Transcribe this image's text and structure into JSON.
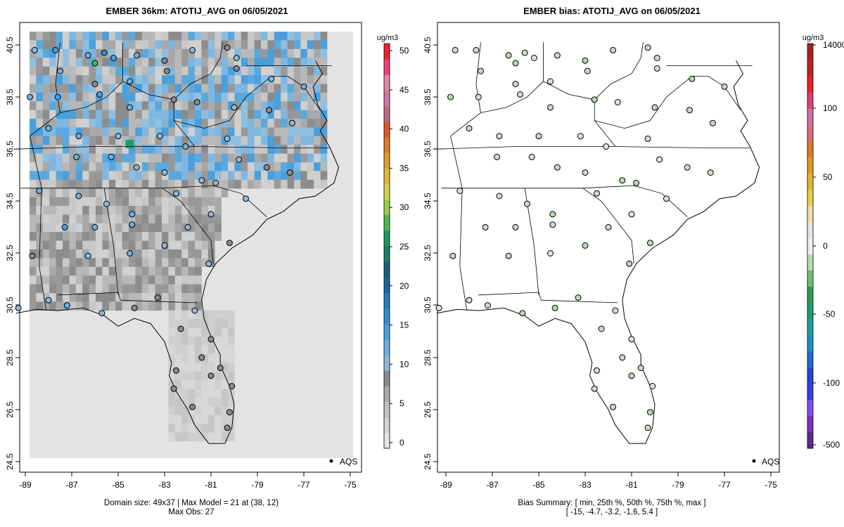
{
  "left_panel": {
    "title": "EMBER 36km: ATOTIJ_AVG on 06/05/2021",
    "footer_line1": "Domain size: 49x37 | Max Model = 21 at (38, 12)",
    "footer_line2": "Max Obs: 27",
    "legend_label": "AQS",
    "colorbar": {
      "unit": "ug/m3",
      "ticks": [
        "0",
        "5",
        "10",
        "15",
        "20",
        "25",
        "30",
        "35",
        "40",
        "45",
        "50"
      ],
      "colors": [
        "#e6e6e6",
        "#d4d4d4",
        "#c2c2c2",
        "#aaaaaa",
        "#8a8a8a",
        "#8fb8d8",
        "#6fb0e0",
        "#4aa0de",
        "#2f8fd0",
        "#1f7ec0",
        "#18689c",
        "#17607a",
        "#16806a",
        "#1a9a60",
        "#4ab84a",
        "#9ccc48",
        "#d4d448",
        "#e0b838",
        "#e09a2e",
        "#e07a26",
        "#dc5a2a",
        "#c26a8a",
        "#cc7aa0",
        "#e08aa8",
        "#f0407a",
        "#f22030"
      ]
    },
    "chart_data": {
      "type": "map",
      "x_axis_ticks": [
        "-89",
        "-87",
        "-85",
        "-83",
        "-81",
        "-79",
        "-77",
        "-75"
      ],
      "y_axis_ticks": [
        "24.5",
        "26.5",
        "28.5",
        "30.5",
        "32.5",
        "34.5",
        "36.5",
        "38.5",
        "40.5"
      ],
      "xlim": [
        -89.2,
        -74.8
      ],
      "ylim": [
        24.3,
        40.9
      ],
      "stations": [
        {
          "lon": -88.6,
          "lat": 40.3,
          "val": 9
        },
        {
          "lon": -87.7,
          "lat": 40.3,
          "val": 13
        },
        {
          "lon": -86.3,
          "lat": 40.1,
          "val": 12
        },
        {
          "lon": -85.6,
          "lat": 40.2,
          "val": 16
        },
        {
          "lon": -85.2,
          "lat": 40.0,
          "val": 14
        },
        {
          "lon": -84.2,
          "lat": 40.1,
          "val": 12
        },
        {
          "lon": -83.0,
          "lat": 39.9,
          "val": 8
        },
        {
          "lon": -81.8,
          "lat": 40.3,
          "val": 9
        },
        {
          "lon": -80.3,
          "lat": 40.4,
          "val": 8
        },
        {
          "lon": -79.9,
          "lat": 40.0,
          "val": 9
        },
        {
          "lon": -86.0,
          "lat": 39.8,
          "val": 27
        },
        {
          "lon": -87.5,
          "lat": 39.5,
          "val": 12
        },
        {
          "lon": -86.0,
          "lat": 39.0,
          "val": 8
        },
        {
          "lon": -84.5,
          "lat": 39.1,
          "val": 12
        },
        {
          "lon": -82.9,
          "lat": 39.5,
          "val": 8
        },
        {
          "lon": -79.9,
          "lat": 39.6,
          "val": 8
        },
        {
          "lon": -78.4,
          "lat": 39.2,
          "val": 9
        },
        {
          "lon": -77.0,
          "lat": 38.9,
          "val": 12
        },
        {
          "lon": -88.8,
          "lat": 38.5,
          "val": 11
        },
        {
          "lon": -87.6,
          "lat": 38.5,
          "val": 14
        },
        {
          "lon": -85.8,
          "lat": 38.6,
          "val": 13
        },
        {
          "lon": -84.5,
          "lat": 38.1,
          "val": 11
        },
        {
          "lon": -82.6,
          "lat": 38.4,
          "val": 7
        },
        {
          "lon": -81.6,
          "lat": 38.3,
          "val": 8
        },
        {
          "lon": -80.0,
          "lat": 38.1,
          "val": 9
        },
        {
          "lon": -78.5,
          "lat": 38.0,
          "val": 8
        },
        {
          "lon": -77.5,
          "lat": 37.5,
          "val": 9
        },
        {
          "lon": -88.0,
          "lat": 37.3,
          "val": 12
        },
        {
          "lon": -86.7,
          "lat": 37.0,
          "val": 11
        },
        {
          "lon": -85.0,
          "lat": 37.0,
          "val": 10
        },
        {
          "lon": -83.2,
          "lat": 37.0,
          "val": 9
        },
        {
          "lon": -82.1,
          "lat": 36.6,
          "val": 11
        },
        {
          "lon": -80.3,
          "lat": 36.9,
          "val": 9
        },
        {
          "lon": -79.8,
          "lat": 36.1,
          "val": 10
        },
        {
          "lon": -78.6,
          "lat": 35.8,
          "val": 8
        },
        {
          "lon": -77.6,
          "lat": 35.6,
          "val": 8
        },
        {
          "lon": -86.8,
          "lat": 36.2,
          "val": 12
        },
        {
          "lon": -85.3,
          "lat": 36.2,
          "val": 12
        },
        {
          "lon": -84.2,
          "lat": 35.8,
          "val": 10
        },
        {
          "lon": -83.0,
          "lat": 35.6,
          "val": 9
        },
        {
          "lon": -81.4,
          "lat": 35.3,
          "val": 9
        },
        {
          "lon": -80.8,
          "lat": 35.2,
          "val": 9
        },
        {
          "lon": -88.4,
          "lat": 34.9,
          "val": 12
        },
        {
          "lon": -86.7,
          "lat": 34.7,
          "val": 12
        },
        {
          "lon": -85.5,
          "lat": 34.4,
          "val": 10
        },
        {
          "lon": -84.4,
          "lat": 34.0,
          "val": 12
        },
        {
          "lon": -82.5,
          "lat": 34.8,
          "val": 9
        },
        {
          "lon": -81.0,
          "lat": 34.0,
          "val": 9
        },
        {
          "lon": -79.5,
          "lat": 34.6,
          "val": 9
        },
        {
          "lon": -87.3,
          "lat": 33.5,
          "val": 13
        },
        {
          "lon": -86.0,
          "lat": 33.5,
          "val": 11
        },
        {
          "lon": -84.4,
          "lat": 33.6,
          "val": 11
        },
        {
          "lon": -82.0,
          "lat": 33.5,
          "val": 10
        },
        {
          "lon": -80.2,
          "lat": 32.9,
          "val": 8
        },
        {
          "lon": -88.7,
          "lat": 32.4,
          "val": 8
        },
        {
          "lon": -86.3,
          "lat": 32.4,
          "val": 10
        },
        {
          "lon": -84.5,
          "lat": 32.5,
          "val": 11
        },
        {
          "lon": -83.0,
          "lat": 32.8,
          "val": 9
        },
        {
          "lon": -81.1,
          "lat": 32.1,
          "val": 9
        },
        {
          "lon": -88.0,
          "lat": 30.7,
          "val": 10
        },
        {
          "lon": -87.2,
          "lat": 30.5,
          "val": 11
        },
        {
          "lon": -85.7,
          "lat": 30.2,
          "val": 9
        },
        {
          "lon": -84.3,
          "lat": 30.4,
          "val": 8
        },
        {
          "lon": -83.3,
          "lat": 30.8,
          "val": 8
        },
        {
          "lon": -81.7,
          "lat": 30.3,
          "val": 9
        },
        {
          "lon": -82.3,
          "lat": 29.6,
          "val": 8
        },
        {
          "lon": -81.0,
          "lat": 29.2,
          "val": 8
        },
        {
          "lon": -82.5,
          "lat": 28.0,
          "val": 7
        },
        {
          "lon": -81.4,
          "lat": 28.5,
          "val": 8
        },
        {
          "lon": -80.6,
          "lat": 28.1,
          "val": 8
        },
        {
          "lon": -82.6,
          "lat": 27.3,
          "val": 7
        },
        {
          "lon": -81.8,
          "lat": 26.6,
          "val": 7
        },
        {
          "lon": -80.2,
          "lat": 26.4,
          "val": 7
        },
        {
          "lon": -80.3,
          "lat": 25.8,
          "val": 7
        },
        {
          "lon": -89.3,
          "lat": 30.4,
          "val": 9
        },
        {
          "lon": -80.1,
          "lat": 27.4,
          "val": 7
        },
        {
          "lon": -81.0,
          "lat": 27.8,
          "val": 8
        }
      ]
    }
  },
  "right_panel": {
    "title": "EMBER bias: ATOTIJ_AVG on 06/05/2021",
    "footer_line1": "Bias Summary: [ min, 25th %, 50th %, 75th %, max ]",
    "footer_line2": "[ -15,   -4.7,   -3.2,   -1.6,   5.4 ]",
    "legend_label": "AQS",
    "colorbar": {
      "unit": "ug/m3",
      "ticks": [
        "-500",
        "-100",
        "-50",
        "0",
        "50",
        "100",
        "14000"
      ],
      "colors": [
        "#5a2a8a",
        "#7a30c8",
        "#7a50f0",
        "#3a3aee",
        "#1a4ae0",
        "#1a6ad8",
        "#1a90c8",
        "#1aa0a0",
        "#1aa070",
        "#2ca050",
        "#6ac070",
        "#b4dcb0",
        "#f0f0f0",
        "#e6e6e6",
        "#f0e0a0",
        "#e8d040",
        "#e8b428",
        "#e89420",
        "#e07a24",
        "#e06a7a",
        "#d070a0",
        "#e04070",
        "#ee2020",
        "#c22020",
        "#a82424"
      ]
    },
    "chart_data": {
      "type": "map",
      "x_axis_ticks": [
        "-89",
        "-87",
        "-85",
        "-83",
        "-81",
        "-79",
        "-77",
        "-75"
      ],
      "y_axis_ticks": [
        "24.5",
        "26.5",
        "28.5",
        "30.5",
        "32.5",
        "34.5",
        "36.5",
        "38.5",
        "40.5"
      ],
      "xlim": [
        -89.2,
        -74.8
      ],
      "ylim": [
        24.3,
        40.9
      ],
      "bias_summary": [
        -15,
        -4.7,
        -3.2,
        -1.6,
        5.4
      ]
    }
  }
}
